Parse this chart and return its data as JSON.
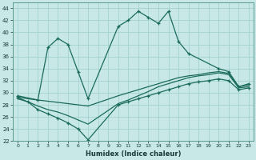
{
  "xlabel": "Humidex (Indice chaleur)",
  "background_color": "#c8e8e8",
  "grid_color": "#9ecece",
  "line_color": "#1a6b5a",
  "xlim": [
    -0.5,
    23.5
  ],
  "ylim": [
    22,
    45
  ],
  "yticks": [
    22,
    24,
    26,
    28,
    30,
    32,
    34,
    36,
    38,
    40,
    42,
    44
  ],
  "xticks": [
    0,
    1,
    2,
    3,
    4,
    5,
    6,
    7,
    8,
    9,
    10,
    11,
    12,
    13,
    14,
    15,
    16,
    17,
    18,
    19,
    20,
    21,
    22,
    23
  ],
  "line1_x": [
    0,
    2,
    3,
    4,
    5,
    6,
    7,
    10,
    11,
    12,
    13,
    14,
    15,
    16,
    17,
    20,
    21,
    22,
    23
  ],
  "line1_y": [
    29.5,
    28.8,
    37.5,
    39.0,
    38.0,
    33.5,
    29.0,
    41.0,
    42.0,
    43.5,
    42.5,
    41.5,
    43.5,
    38.5,
    36.5,
    34.0,
    33.5,
    31.0,
    31.5
  ],
  "line2_x": [
    0,
    1,
    2,
    3,
    4,
    5,
    6,
    7,
    10,
    11,
    12,
    13,
    14,
    15,
    16,
    17,
    18,
    19,
    20,
    21,
    22,
    23
  ],
  "line2_y": [
    29.3,
    29.0,
    28.8,
    28.6,
    28.4,
    28.2,
    28.0,
    27.8,
    29.5,
    30.0,
    30.5,
    31.0,
    31.5,
    32.0,
    32.5,
    32.8,
    33.0,
    33.3,
    33.5,
    33.2,
    31.0,
    31.3
  ],
  "line3_x": [
    0,
    1,
    2,
    3,
    4,
    5,
    6,
    7,
    10,
    11,
    12,
    13,
    14,
    15,
    16,
    17,
    18,
    19,
    20,
    21,
    22,
    23
  ],
  "line3_y": [
    29.0,
    28.5,
    27.8,
    27.2,
    26.8,
    26.2,
    25.5,
    24.8,
    28.2,
    28.8,
    29.5,
    30.2,
    31.0,
    31.5,
    32.0,
    32.5,
    32.8,
    33.0,
    33.3,
    33.0,
    30.8,
    31.0
  ],
  "line4_x": [
    0,
    1,
    2,
    3,
    4,
    5,
    6,
    7,
    10,
    11,
    12,
    13,
    14,
    15,
    16,
    17,
    18,
    19,
    20,
    21,
    22,
    23
  ],
  "line4_y": [
    29.2,
    28.5,
    27.2,
    26.5,
    25.8,
    25.0,
    24.0,
    22.2,
    28.0,
    28.5,
    29.0,
    29.5,
    30.0,
    30.5,
    31.0,
    31.5,
    31.8,
    32.0,
    32.3,
    32.0,
    30.5,
    30.8
  ]
}
